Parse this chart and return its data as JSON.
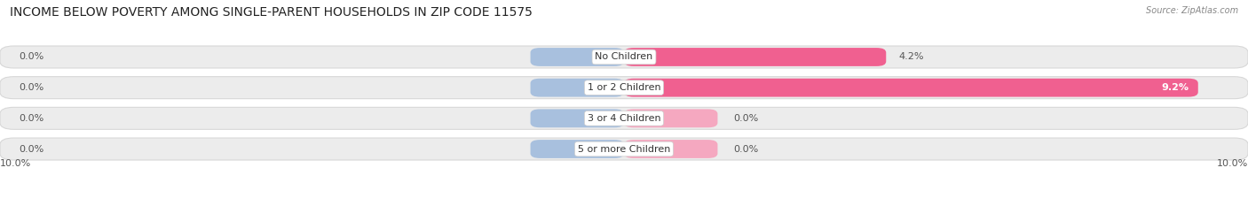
{
  "title": "INCOME BELOW POVERTY AMONG SINGLE-PARENT HOUSEHOLDS IN ZIP CODE 11575",
  "source": "Source: ZipAtlas.com",
  "categories": [
    "No Children",
    "1 or 2 Children",
    "3 or 4 Children",
    "5 or more Children"
  ],
  "single_father": [
    0.0,
    0.0,
    0.0,
    0.0
  ],
  "single_mother": [
    4.2,
    9.2,
    0.0,
    0.0
  ],
  "xlim_left": -10.0,
  "xlim_right": 10.0,
  "father_color": "#a8c0de",
  "mother_color_light": "#f5a8c0",
  "mother_color_dark": "#f06090",
  "bar_bg_color": "#ececec",
  "bar_bg_edge": "#d8d8d8",
  "title_fontsize": 10,
  "label_fontsize": 8,
  "category_fontsize": 8,
  "legend_fontsize": 8.5,
  "bar_height": 0.72,
  "bg_color": "#ffffff",
  "text_color": "#555555",
  "category_text_color": "#333333"
}
